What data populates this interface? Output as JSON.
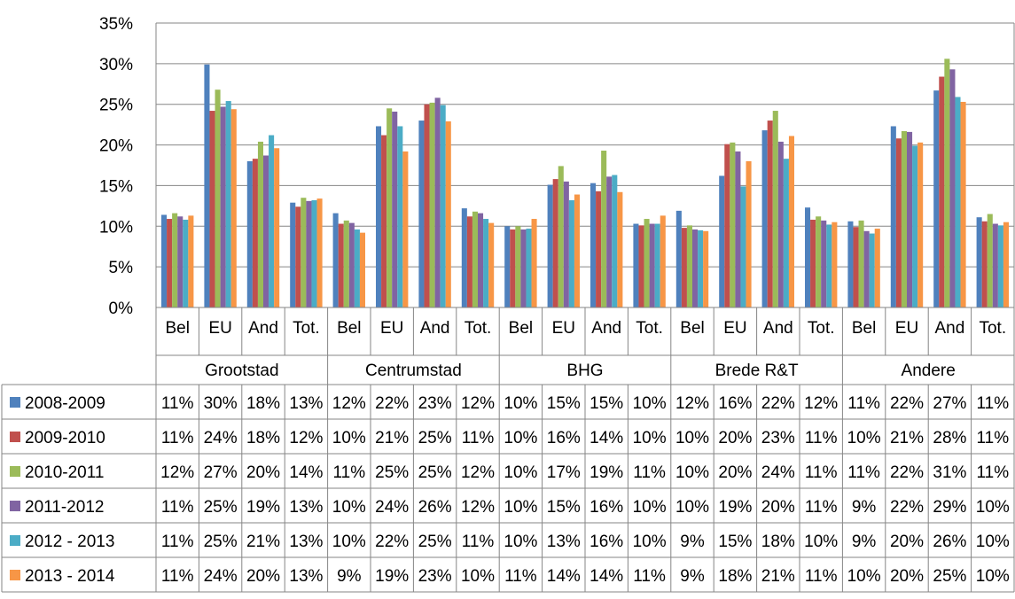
{
  "chart_data": {
    "type": "bar",
    "y_ticks": [
      "0%",
      "5%",
      "10%",
      "15%",
      "20%",
      "25%",
      "30%",
      "35%"
    ],
    "ylim": [
      0,
      35
    ],
    "grid": true,
    "legend": "data table rows",
    "groups": [
      {
        "name": "Grootstad",
        "subcategories": [
          "Bel",
          "EU",
          "And",
          "Tot."
        ]
      },
      {
        "name": "Centrumstad",
        "subcategories": [
          "Bel",
          "EU",
          "And",
          "Tot."
        ]
      },
      {
        "name": "BHG",
        "subcategories": [
          "Bel",
          "EU",
          "And",
          "Tot."
        ]
      },
      {
        "name": "Brede R&T",
        "subcategories": [
          "Bel",
          "EU",
          "And",
          "Tot."
        ]
      },
      {
        "name": "Andere",
        "subcategories": [
          "Bel",
          "EU",
          "And",
          "Tot."
        ]
      }
    ],
    "series": [
      {
        "name": "2008-2009",
        "color": "#4F81BD",
        "values": [
          11.4,
          29.9,
          18.0,
          12.9,
          11.6,
          22.3,
          23.0,
          12.2,
          10.0,
          15.1,
          15.3,
          10.3,
          11.9,
          16.2,
          21.8,
          12.3,
          10.6,
          22.3,
          26.7,
          11.1
        ],
        "labels": [
          "11%",
          "30%",
          "18%",
          "13%",
          "12%",
          "22%",
          "23%",
          "12%",
          "10%",
          "15%",
          "15%",
          "10%",
          "12%",
          "16%",
          "22%",
          "12%",
          "11%",
          "22%",
          "27%",
          "11%"
        ]
      },
      {
        "name": "2009-2010",
        "color": "#C0504D",
        "values": [
          10.9,
          24.2,
          18.3,
          12.4,
          10.3,
          21.2,
          25.0,
          11.2,
          9.6,
          15.8,
          14.3,
          10.1,
          9.8,
          20.1,
          23.0,
          10.8,
          9.9,
          20.8,
          28.4,
          10.6
        ],
        "labels": [
          "11%",
          "24%",
          "18%",
          "12%",
          "10%",
          "21%",
          "25%",
          "11%",
          "10%",
          "16%",
          "14%",
          "10%",
          "10%",
          "20%",
          "23%",
          "11%",
          "10%",
          "21%",
          "28%",
          "11%"
        ]
      },
      {
        "name": "2010-2011",
        "color": "#9BBB59",
        "values": [
          11.6,
          26.8,
          20.4,
          13.5,
          10.7,
          24.5,
          25.2,
          11.8,
          10.0,
          17.4,
          19.3,
          10.9,
          10.1,
          20.3,
          24.2,
          11.2,
          10.7,
          21.7,
          30.6,
          11.5
        ],
        "labels": [
          "12%",
          "27%",
          "20%",
          "14%",
          "11%",
          "25%",
          "25%",
          "12%",
          "10%",
          "17%",
          "19%",
          "11%",
          "10%",
          "20%",
          "24%",
          "11%",
          "11%",
          "22%",
          "31%",
          "11%"
        ]
      },
      {
        "name": "2011-2012",
        "color": "#8064A2",
        "values": [
          11.2,
          24.7,
          18.7,
          13.1,
          10.4,
          24.1,
          25.8,
          11.6,
          9.6,
          15.5,
          16.1,
          10.3,
          9.6,
          19.2,
          20.4,
          10.7,
          9.4,
          21.6,
          29.3,
          10.3
        ],
        "labels": [
          "11%",
          "25%",
          "19%",
          "13%",
          "10%",
          "24%",
          "26%",
          "12%",
          "10%",
          "15%",
          "16%",
          "10%",
          "10%",
          "19%",
          "20%",
          "11%",
          "9%",
          "22%",
          "29%",
          "10%"
        ]
      },
      {
        "name": "2012 - 2013",
        "color": "#4BACC6",
        "values": [
          10.8,
          25.4,
          21.2,
          13.2,
          9.6,
          22.3,
          24.9,
          10.9,
          9.7,
          13.2,
          16.3,
          10.3,
          9.5,
          14.9,
          18.3,
          10.2,
          9.1,
          19.9,
          25.9,
          10.1
        ],
        "labels": [
          "11%",
          "25%",
          "21%",
          "13%",
          "10%",
          "22%",
          "25%",
          "11%",
          "10%",
          "13%",
          "16%",
          "10%",
          "9%",
          "15%",
          "18%",
          "10%",
          "9%",
          "20%",
          "26%",
          "10%"
        ]
      },
      {
        "name": "2013 - 2014",
        "color": "#F79646",
        "values": [
          11.3,
          24.4,
          19.6,
          13.4,
          9.2,
          19.2,
          22.9,
          10.4,
          10.9,
          13.9,
          14.2,
          11.3,
          9.4,
          18.0,
          21.1,
          10.5,
          9.7,
          20.3,
          25.3,
          10.5
        ],
        "labels": [
          "11%",
          "24%",
          "20%",
          "13%",
          "9%",
          "19%",
          "23%",
          "10%",
          "11%",
          "14%",
          "14%",
          "11%",
          "9%",
          "18%",
          "21%",
          "11%",
          "10%",
          "20%",
          "25%",
          "10%"
        ]
      }
    ]
  }
}
